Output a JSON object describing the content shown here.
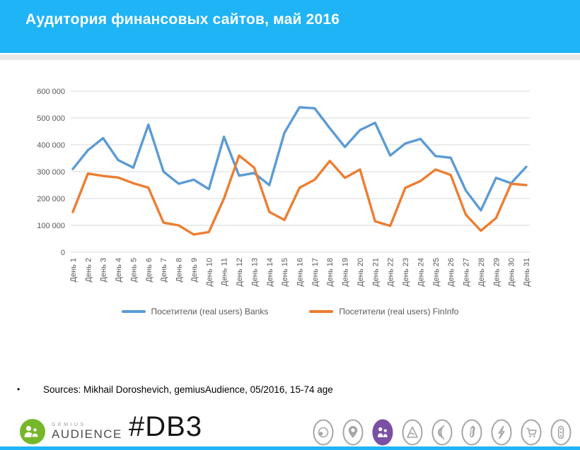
{
  "header": {
    "title": "Аудитория финансовых сайтов, май 2016"
  },
  "colors": {
    "header_bg": "#1FB4F5",
    "banks_line": "#5B9BD5",
    "fininfo_line": "#ED7D31",
    "gridline": "#D9D9D9",
    "axis_text": "#595959",
    "logo_green": "#76B72A",
    "icon_gray": "#A6A6A6",
    "active_icon_purple": "#7B4FA3"
  },
  "chart_data": {
    "type": "line",
    "title": "Аудитория финансовых сайтов, май 2016",
    "xlabel": "",
    "ylabel": "",
    "ylim": [
      0,
      600000
    ],
    "ytick_step": 100000,
    "ytick_labels": [
      "0",
      "100 000",
      "200 000",
      "300 000",
      "400 000",
      "500 000",
      "600 000"
    ],
    "grid": true,
    "legend_position": "bottom",
    "categories": [
      "День 1",
      "День 2",
      "День 3",
      "День 4",
      "День 5",
      "День 6",
      "День 7",
      "День 8",
      "День 9",
      "День 10",
      "День 11",
      "День 12",
      "День 13",
      "День 14",
      "День 15",
      "День 16",
      "День 17",
      "День 18",
      "День 19",
      "День 20",
      "День 21",
      "День 22",
      "День 23",
      "День 24",
      "День 25",
      "День 26",
      "День 27",
      "День 28",
      "День 29",
      "День 30",
      "День 31"
    ],
    "series": [
      {
        "name": "Посетители (real users) Banks",
        "color": "#5B9BD5",
        "values": [
          310000,
          380000,
          425000,
          343000,
          315000,
          475000,
          300000,
          255000,
          270000,
          235000,
          430000,
          285000,
          295000,
          250000,
          445000,
          540000,
          536000,
          462000,
          392000,
          455000,
          482000,
          360000,
          405000,
          422000,
          358000,
          352000,
          230000,
          156000,
          277000,
          257000,
          318000
        ]
      },
      {
        "name": "Посетители (real users) FinInfo",
        "color": "#ED7D31",
        "values": [
          150000,
          293000,
          284000,
          278000,
          257000,
          240000,
          110000,
          100000,
          66000,
          75000,
          200000,
          360000,
          315000,
          150000,
          120000,
          240000,
          270000,
          340000,
          277000,
          308000,
          115000,
          98000,
          240000,
          265000,
          308000,
          288000,
          140000,
          80000,
          127000,
          255000,
          250000
        ]
      }
    ]
  },
  "sources": {
    "bullet": "•",
    "text": "Sources: Mikhail Doroshevich, gemiusAudience,  05/2016, 15-74 age"
  },
  "footer": {
    "logo": {
      "brand_top": "GEMIUS",
      "brand_bottom": "AUDIENCE"
    },
    "hashtag": "#DB3",
    "icons": [
      {
        "name": "eye-icon",
        "active": false
      },
      {
        "name": "location-pin-icon",
        "active": false
      },
      {
        "name": "people-icon",
        "active": true
      },
      {
        "name": "mountain-icon",
        "active": false
      },
      {
        "name": "signal-waves-icon",
        "active": false
      },
      {
        "name": "flame-icon",
        "active": false
      },
      {
        "name": "lightning-icon",
        "active": false
      },
      {
        "name": "shopping-cart-icon",
        "active": false
      },
      {
        "name": "traffic-light-icon",
        "active": false
      }
    ]
  }
}
